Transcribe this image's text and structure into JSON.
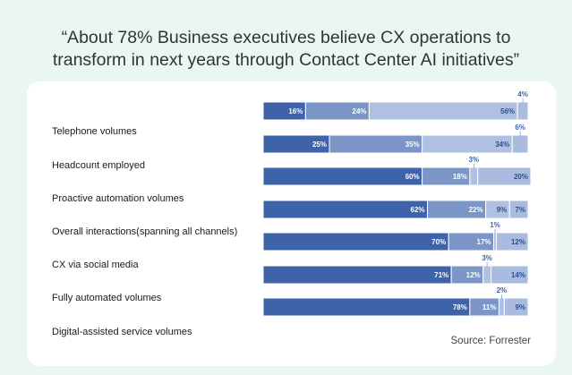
{
  "title_line1": "“About 78% Business executives believe CX operations to",
  "title_line2": "transform in next  years through Contact Center AI initiatives”",
  "source": "Source: Forrester",
  "colors": {
    "seg1": "#3f63a8",
    "seg2": "#7b95c7",
    "seg3": "#b0c0e1",
    "seg4": "#a9bbde",
    "separator": "#ffffff"
  },
  "chart_data": {
    "type": "bar",
    "orientation": "horizontal",
    "stacked": true,
    "categories": [
      "Telephone volumes",
      "Headcount employed",
      "Proactive automation volumes",
      "Overall interactions(spanning all channels)",
      "CX via social media",
      "Fully automated volumes",
      "Digital-assisted service volumes"
    ],
    "series": [
      {
        "values": [
          16,
          25,
          60,
          62,
          70,
          71,
          78
        ]
      },
      {
        "values": [
          24,
          35,
          18,
          22,
          17,
          12,
          11
        ]
      },
      {
        "values": [
          56,
          34,
          3,
          9,
          1,
          3,
          2
        ]
      },
      {
        "values": [
          4,
          6,
          20,
          7,
          12,
          14,
          9
        ]
      }
    ],
    "xlim": [
      0,
      100
    ],
    "legend": "none",
    "grid": false
  }
}
